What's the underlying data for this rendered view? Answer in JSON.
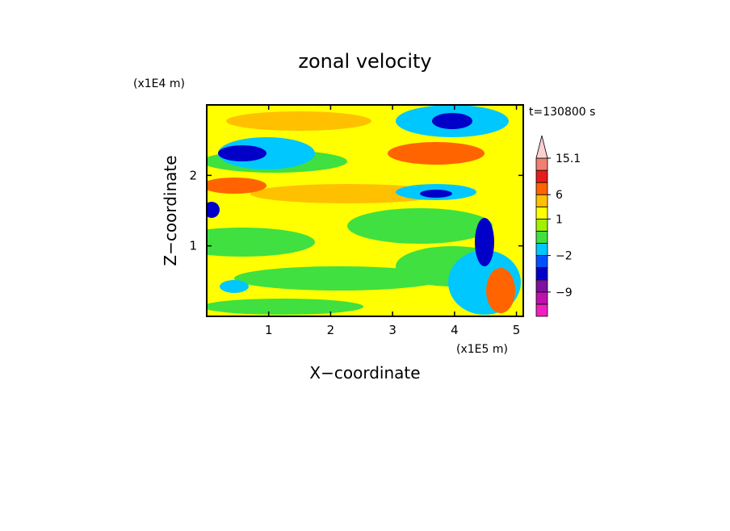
{
  "chart_data": {
    "type": "contour",
    "title": "zonal velocity",
    "x_label": "X−coordinate",
    "y_label": "Z−coordinate",
    "x_unit": "(x1E5 m)",
    "y_unit": "(x1E4 m)",
    "time_label": "t=130800 s",
    "xlim": [
      0,
      5.11
    ],
    "ylim": [
      0,
      3
    ],
    "xticks": [
      1,
      2,
      3,
      4,
      5
    ],
    "yticks": [
      1,
      2
    ],
    "colorbar": {
      "bounds": [
        -20,
        -15,
        -9,
        -6,
        -3,
        -2,
        -1,
        0,
        1,
        3,
        6,
        9,
        12,
        15.1
      ],
      "colors": [
        "#f020c0",
        "#c010b0",
        "#8010a0",
        "#0000c8",
        "#0050ff",
        "#00c8ff",
        "#40e040",
        "#a0f000",
        "#ffff00",
        "#ffc000",
        "#ff6400",
        "#e81c1c",
        "#f08070"
      ],
      "extend_color": "#fbd0d0",
      "ticks": [
        {
          "value": -9,
          "label": "−9"
        },
        {
          "value": -2,
          "label": "−2"
        },
        1,
        6,
        15.1
      ]
    }
  }
}
